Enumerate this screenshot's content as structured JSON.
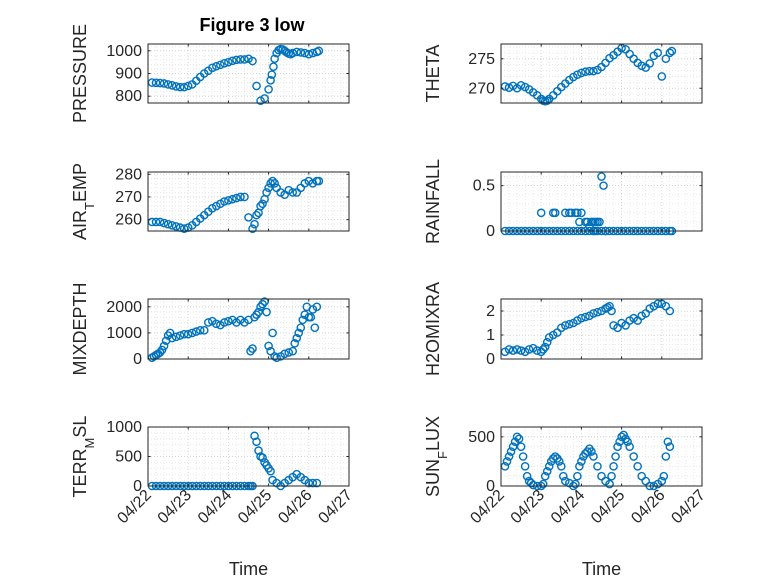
{
  "figure": {
    "title": "Figure 3 low",
    "marker_color": "#0072BD"
  },
  "chart_data": [
    {
      "type": "scatter",
      "panel": "pressure",
      "title": "Figure 3 low",
      "ylabel": "PRESSURE",
      "xlabel": "",
      "xlim": [
        0,
        5
      ],
      "ylim": [
        770,
        1030
      ],
      "yticks": [
        800,
        900,
        1000
      ],
      "ytick_labels": [
        "800",
        "900",
        "1000"
      ],
      "xticks": [
        0,
        1,
        2,
        3,
        4,
        5
      ],
      "xtick_labels": [],
      "grid": true,
      "series": [
        {
          "x": [
            0.1,
            0.2,
            0.3,
            0.4,
            0.5,
            0.6,
            0.7,
            0.8,
            0.9,
            1.0,
            1.1,
            1.2,
            1.3,
            1.4,
            1.5,
            1.6,
            1.7,
            1.8,
            1.9,
            2.0,
            2.1,
            2.2,
            2.3,
            2.4,
            2.5,
            2.6,
            2.7,
            2.8,
            2.9,
            3.0,
            3.05,
            3.08,
            3.12,
            3.15,
            3.2,
            3.25,
            3.3,
            3.35,
            3.4,
            3.45,
            3.5,
            3.55,
            3.6,
            3.7,
            3.8,
            3.9,
            4.0,
            4.1,
            4.2,
            4.25
          ],
          "y": [
            860,
            859,
            858,
            856,
            852,
            848,
            843,
            840,
            840,
            845,
            852,
            868,
            885,
            900,
            912,
            925,
            932,
            938,
            945,
            950,
            956,
            960,
            962,
            962,
            965,
            955,
            845,
            780,
            790,
            830,
            870,
            895,
            930,
            965,
            990,
            1003,
            1008,
            1006,
            1000,
            993,
            988,
            985,
            990,
            995,
            993,
            990,
            985,
            990,
            995,
            1000
          ]
        }
      ]
    },
    {
      "type": "scatter",
      "panel": "theta",
      "ylabel": "THETA",
      "xlabel": "",
      "xlim": [
        0,
        5
      ],
      "ylim": [
        267.5,
        277.5
      ],
      "yticks": [
        270,
        275
      ],
      "ytick_labels": [
        "270",
        "275"
      ],
      "xticks": [
        0,
        1,
        2,
        3,
        4,
        5
      ],
      "xtick_labels": [],
      "grid": true,
      "series": [
        {
          "x": [
            0.1,
            0.2,
            0.3,
            0.4,
            0.5,
            0.6,
            0.7,
            0.8,
            0.9,
            1.0,
            1.05,
            1.1,
            1.15,
            1.2,
            1.3,
            1.4,
            1.5,
            1.6,
            1.7,
            1.8,
            1.9,
            2.0,
            2.1,
            2.2,
            2.3,
            2.4,
            2.5,
            2.6,
            2.7,
            2.8,
            2.9,
            3.0,
            3.1,
            3.2,
            3.3,
            3.4,
            3.5,
            3.6,
            3.7,
            3.8,
            3.9,
            4.0,
            4.1,
            4.2,
            4.25
          ],
          "y": [
            270.3,
            270.1,
            270.4,
            270.0,
            270.5,
            270.2,
            269.8,
            269.3,
            268.8,
            268.2,
            267.9,
            267.8,
            267.9,
            268.2,
            268.8,
            269.5,
            270.2,
            270.8,
            271.4,
            271.9,
            272.3,
            272.6,
            272.8,
            272.9,
            272.9,
            273.1,
            273.6,
            274.3,
            275.1,
            275.6,
            276.2,
            276.8,
            276.6,
            275.8,
            275.0,
            274.3,
            273.8,
            273.5,
            274.2,
            275.5,
            276.0,
            272.0,
            275.0,
            276.0,
            276.3
          ]
        }
      ]
    },
    {
      "type": "scatter",
      "panel": "air_temp",
      "ylabel": "AIR_TEMP",
      "ylabel_parts": [
        "AIR",
        "T",
        "EMP"
      ],
      "xlabel": "",
      "xlim": [
        0,
        5
      ],
      "ylim": [
        255,
        281
      ],
      "yticks": [
        260,
        270,
        280
      ],
      "ytick_labels": [
        "260",
        "270",
        "280"
      ],
      "xticks": [
        0,
        1,
        2,
        3,
        4,
        5
      ],
      "xtick_labels": [],
      "grid": true,
      "series": [
        {
          "x": [
            0.1,
            0.2,
            0.3,
            0.4,
            0.5,
            0.6,
            0.7,
            0.8,
            0.9,
            1.0,
            1.1,
            1.2,
            1.3,
            1.4,
            1.5,
            1.6,
            1.7,
            1.8,
            1.9,
            2.0,
            2.1,
            2.2,
            2.3,
            2.4,
            2.5,
            2.6,
            2.65,
            2.7,
            2.75,
            2.8,
            2.85,
            2.9,
            2.95,
            3.0,
            3.05,
            3.1,
            3.15,
            3.2,
            3.3,
            3.4,
            3.5,
            3.6,
            3.7,
            3.8,
            3.9,
            4.0,
            4.1,
            4.2,
            4.25
          ],
          "y": [
            259,
            259,
            259,
            258.5,
            258,
            257.5,
            257,
            256.5,
            256,
            256.5,
            257.5,
            259,
            260.5,
            262,
            263.5,
            265,
            266,
            267,
            268,
            268.5,
            269,
            269.5,
            270,
            270,
            261,
            256,
            258,
            262,
            263,
            266,
            267,
            269,
            272,
            274,
            276,
            277,
            276,
            274,
            272,
            271,
            273,
            272,
            272,
            274,
            276,
            277,
            276,
            277,
            277
          ]
        }
      ]
    },
    {
      "type": "scatter",
      "panel": "rainfall",
      "ylabel": "RAINFALL",
      "xlabel": "",
      "xlim": [
        0,
        5
      ],
      "ylim": [
        0,
        0.65
      ],
      "yticks": [
        0,
        0.5
      ],
      "ytick_labels": [
        "0",
        "0.5"
      ],
      "xticks": [
        0,
        1,
        2,
        3,
        4,
        5
      ],
      "xtick_labels": [],
      "grid": true,
      "series": [
        {
          "x": [
            0.1,
            0.2,
            0.3,
            0.4,
            0.5,
            0.6,
            0.7,
            0.8,
            0.9,
            1.0,
            1.1,
            1.2,
            1.3,
            1.4,
            1.5,
            1.6,
            1.7,
            1.8,
            1.9,
            2.0,
            2.1,
            2.2,
            2.3,
            2.4,
            2.5,
            2.6,
            2.7,
            2.8,
            2.9,
            3.0,
            3.1,
            3.2,
            3.3,
            3.4,
            3.5,
            3.6,
            3.7,
            3.8,
            3.9,
            4.0,
            4.1,
            4.2,
            4.25,
            1.0,
            1.3,
            1.35,
            1.6,
            1.7,
            1.75,
            1.85,
            1.9,
            1.95,
            2.0,
            2.1,
            2.15,
            2.2,
            2.25,
            2.3,
            2.35,
            2.4,
            2.45,
            2.5,
            2.55,
            2.6,
            2.3,
            2.35
          ],
          "y": [
            0,
            0,
            0,
            0,
            0,
            0,
            0,
            0,
            0,
            0,
            0,
            0,
            0,
            0,
            0,
            0,
            0,
            0,
            0,
            0,
            0,
            0,
            0,
            0,
            0,
            0,
            0,
            0,
            0,
            0,
            0,
            0,
            0,
            0,
            0,
            0,
            0,
            0,
            0,
            0,
            0,
            0,
            0,
            0.2,
            0.2,
            0.2,
            0.2,
            0.2,
            0.2,
            0.2,
            0.2,
            0.1,
            0.2,
            0.1,
            0.1,
            0.05,
            0.1,
            0.1,
            0.1,
            0.1,
            0.1,
            0.6,
            0.5,
            0,
            0,
            0
          ]
        }
      ]
    },
    {
      "type": "scatter",
      "panel": "mixdepth",
      "ylabel": "MIXDEPTH",
      "xlabel": "",
      "xlim": [
        0,
        5
      ],
      "ylim": [
        0,
        2300
      ],
      "yticks": [
        0,
        1000,
        2000
      ],
      "ytick_labels": [
        "0",
        "1000",
        "2000"
      ],
      "xticks": [
        0,
        1,
        2,
        3,
        4,
        5
      ],
      "xtick_labels": [],
      "grid": true,
      "series": [
        {
          "x": [
            0.1,
            0.15,
            0.2,
            0.25,
            0.3,
            0.35,
            0.4,
            0.45,
            0.5,
            0.55,
            0.6,
            0.7,
            0.8,
            0.9,
            1.0,
            1.1,
            1.2,
            1.3,
            1.4,
            1.5,
            1.6,
            1.7,
            1.8,
            1.9,
            2.0,
            2.1,
            2.2,
            2.3,
            2.4,
            2.5,
            2.55,
            2.6,
            2.65,
            2.7,
            2.75,
            2.8,
            2.85,
            2.9,
            2.95,
            3.0,
            3.05,
            3.1,
            3.15,
            3.2,
            3.3,
            3.4,
            3.5,
            3.6,
            3.65,
            3.7,
            3.75,
            3.8,
            3.85,
            3.9,
            3.95,
            4.0,
            4.05,
            4.1,
            4.15,
            4.2
          ],
          "y": [
            50,
            100,
            150,
            200,
            250,
            350,
            500,
            700,
            900,
            1000,
            800,
            850,
            900,
            950,
            950,
            1000,
            1050,
            1100,
            1100,
            1400,
            1450,
            1350,
            1300,
            1400,
            1450,
            1500,
            1400,
            1500,
            1400,
            1500,
            300,
            400,
            1600,
            1700,
            1800,
            2000,
            2100,
            2200,
            1800,
            500,
            300,
            1000,
            100,
            50,
            100,
            200,
            250,
            300,
            600,
            800,
            1000,
            1200,
            1500,
            1700,
            2000,
            1600,
            1600,
            1900,
            1200,
            2000
          ]
        }
      ]
    },
    {
      "type": "scatter",
      "panel": "h2omixra",
      "ylabel": "H2OMIXRA",
      "xlabel": "",
      "xlim": [
        0,
        5
      ],
      "ylim": [
        0,
        2.5
      ],
      "yticks": [
        0,
        1,
        2
      ],
      "ytick_labels": [
        "0",
        "1",
        "2"
      ],
      "xticks": [
        0,
        1,
        2,
        3,
        4,
        5
      ],
      "xtick_labels": [],
      "grid": true,
      "series": [
        {
          "x": [
            0.1,
            0.2,
            0.3,
            0.4,
            0.5,
            0.6,
            0.7,
            0.8,
            0.9,
            1.0,
            1.05,
            1.1,
            1.15,
            1.2,
            1.3,
            1.4,
            1.5,
            1.6,
            1.7,
            1.8,
            1.9,
            2.0,
            2.1,
            2.2,
            2.3,
            2.4,
            2.5,
            2.6,
            2.65,
            2.7,
            2.75,
            2.8,
            2.9,
            3.0,
            3.1,
            3.2,
            3.3,
            3.4,
            3.5,
            3.6,
            3.7,
            3.8,
            3.9,
            4.0,
            4.1,
            4.2
          ],
          "y": [
            0.3,
            0.4,
            0.35,
            0.4,
            0.35,
            0.3,
            0.4,
            0.45,
            0.35,
            0.3,
            0.4,
            0.5,
            0.7,
            0.9,
            1.0,
            1.1,
            1.3,
            1.4,
            1.45,
            1.5,
            1.6,
            1.7,
            1.75,
            1.8,
            1.9,
            1.95,
            2.0,
            2.1,
            2.15,
            2.2,
            2.0,
            1.4,
            1.3,
            1.5,
            1.4,
            1.6,
            1.7,
            1.6,
            1.8,
            1.9,
            2.1,
            2.2,
            2.3,
            2.3,
            2.2,
            2.0
          ]
        }
      ]
    },
    {
      "type": "scatter",
      "panel": "terr_msl",
      "ylabel": "TERR_MSL",
      "ylabel_parts": [
        "TERR",
        "M",
        "SL"
      ],
      "xlabel": "Time",
      "xlim": [
        0,
        5
      ],
      "ylim": [
        0,
        1000
      ],
      "yticks": [
        0,
        500,
        1000
      ],
      "ytick_labels": [
        "0",
        "500",
        "1000"
      ],
      "xticks": [
        0,
        1,
        2,
        3,
        4,
        5
      ],
      "xtick_labels": [
        "04/22",
        "04/23",
        "04/24",
        "04/25",
        "04/26",
        "04/27"
      ],
      "grid": true,
      "series": [
        {
          "x": [
            0.1,
            0.2,
            0.3,
            0.4,
            0.5,
            0.6,
            0.7,
            0.8,
            0.9,
            1.0,
            1.1,
            1.2,
            1.3,
            1.4,
            1.5,
            1.6,
            1.7,
            1.8,
            1.9,
            2.0,
            2.1,
            2.2,
            2.3,
            2.4,
            2.5,
            2.55,
            2.6,
            2.65,
            2.7,
            2.75,
            2.8,
            2.85,
            2.9,
            2.95,
            3.0,
            3.05,
            3.1,
            3.2,
            3.3,
            3.4,
            3.5,
            3.6,
            3.7,
            3.8,
            3.9,
            4.0,
            4.1,
            4.2
          ],
          "y": [
            0,
            0,
            0,
            0,
            0,
            0,
            0,
            0,
            0,
            0,
            0,
            0,
            0,
            0,
            0,
            0,
            0,
            0,
            0,
            0,
            0,
            0,
            0,
            0,
            0,
            0,
            0,
            850,
            750,
            600,
            500,
            480,
            400,
            350,
            300,
            250,
            100,
            50,
            0,
            50,
            100,
            150,
            200,
            150,
            100,
            50,
            50,
            50
          ]
        }
      ]
    },
    {
      "type": "scatter",
      "panel": "sun_flux",
      "ylabel": "SUN_FLUX",
      "ylabel_parts": [
        "SUN",
        "F",
        "LUX"
      ],
      "xlabel": "Time",
      "xlim": [
        0,
        5
      ],
      "ylim": [
        0,
        600
      ],
      "yticks": [
        0,
        500
      ],
      "ytick_labels": [
        "0",
        "500"
      ],
      "xticks": [
        0,
        1,
        2,
        3,
        4,
        5
      ],
      "xtick_labels": [
        "04/22",
        "04/23",
        "04/24",
        "04/25",
        "04/26",
        "04/27"
      ],
      "grid": true,
      "series": [
        {
          "x": [
            0.1,
            0.15,
            0.2,
            0.25,
            0.3,
            0.35,
            0.4,
            0.45,
            0.5,
            0.55,
            0.6,
            0.65,
            0.7,
            0.75,
            0.8,
            0.9,
            1.0,
            1.05,
            1.1,
            1.15,
            1.2,
            1.25,
            1.3,
            1.35,
            1.4,
            1.45,
            1.5,
            1.55,
            1.6,
            1.7,
            1.8,
            1.85,
            1.9,
            1.95,
            2.0,
            2.05,
            2.1,
            2.15,
            2.2,
            2.25,
            2.3,
            2.4,
            2.5,
            2.6,
            2.7,
            2.75,
            2.8,
            2.85,
            2.9,
            2.95,
            3.0,
            3.05,
            3.1,
            3.15,
            3.2,
            3.3,
            3.4,
            3.5,
            3.6,
            3.7,
            3.8,
            3.9,
            4.0,
            4.05,
            4.1,
            4.15,
            4.2
          ],
          "y": [
            200,
            250,
            300,
            350,
            400,
            450,
            500,
            480,
            400,
            300,
            200,
            100,
            50,
            30,
            10,
            0,
            0,
            20,
            100,
            150,
            200,
            250,
            280,
            300,
            280,
            250,
            200,
            100,
            50,
            30,
            0,
            20,
            100,
            200,
            250,
            300,
            330,
            350,
            380,
            350,
            300,
            200,
            100,
            50,
            20,
            100,
            200,
            300,
            400,
            450,
            500,
            520,
            480,
            450,
            400,
            300,
            200,
            100,
            50,
            0,
            0,
            20,
            50,
            100,
            300,
            450,
            400
          ]
        }
      ]
    }
  ]
}
